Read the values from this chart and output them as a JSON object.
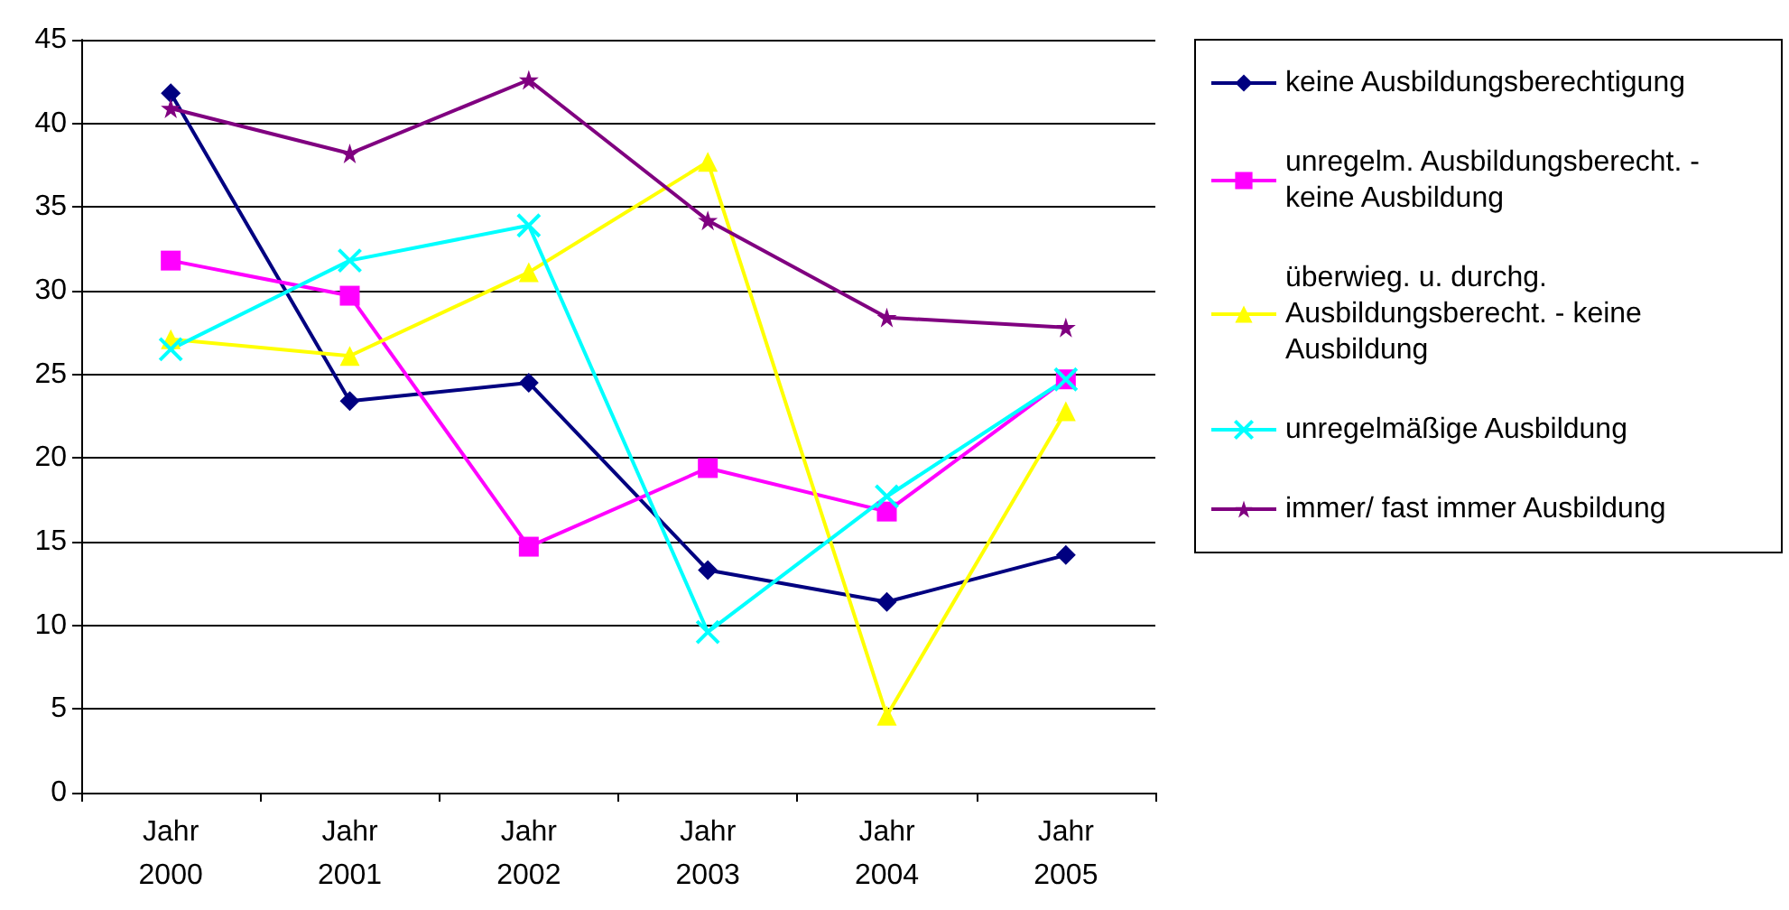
{
  "chart_data": {
    "type": "line",
    "categories": [
      "Jahr 2000",
      "Jahr 2001",
      "Jahr 2002",
      "Jahr 2003",
      "Jahr 2004",
      "Jahr 2005"
    ],
    "ylim": [
      0,
      45
    ],
    "yticks": [
      0,
      5,
      10,
      15,
      20,
      25,
      30,
      35,
      40,
      45
    ],
    "grid": "y",
    "legend": "right",
    "series": [
      {
        "name": "keine Ausbildungsberechtigung",
        "color": "#000080",
        "marker": "diamond",
        "values": [
          41.8,
          23.4,
          24.5,
          13.3,
          11.4,
          14.2
        ]
      },
      {
        "name": "unregelm. Ausbildungsberecht. - keine Ausbildung",
        "color": "#ff00ff",
        "marker": "square",
        "values": [
          31.8,
          29.7,
          14.7,
          19.4,
          16.8,
          24.7
        ]
      },
      {
        "name": "überwieg. u. durchg. Ausbildungsberecht. - keine Ausbildung",
        "color": "#ffff00",
        "marker": "triangle",
        "values": [
          27.1,
          26.1,
          31.1,
          37.7,
          4.6,
          22.8
        ]
      },
      {
        "name": "unregelmäßige Ausbildung",
        "color": "#00ffff",
        "marker": "cross",
        "values": [
          26.5,
          31.8,
          33.9,
          9.6,
          17.7,
          24.7
        ]
      },
      {
        "name": "immer/ fast immer Ausbildung",
        "color": "#800080",
        "marker": "star",
        "values": [
          40.9,
          38.2,
          42.6,
          34.2,
          28.4,
          27.8
        ]
      }
    ]
  }
}
